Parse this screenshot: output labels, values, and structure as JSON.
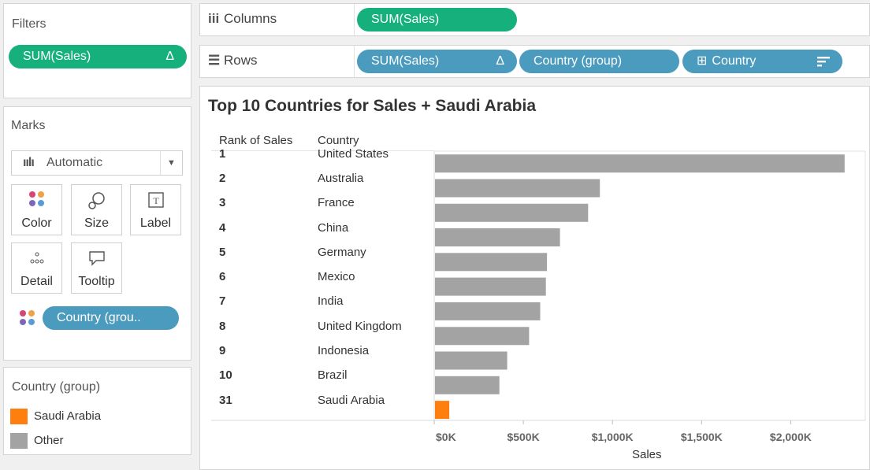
{
  "filters": {
    "title": "Filters",
    "pill": {
      "label": "SUM(Sales)",
      "icon": "Δ"
    }
  },
  "columns": {
    "label": "Columns",
    "pills": [
      {
        "label": "SUM(Sales)"
      }
    ]
  },
  "rows": {
    "label": "Rows",
    "pills": [
      {
        "label": "SUM(Sales)",
        "icon": "Δ"
      },
      {
        "label": "Country (group)"
      },
      {
        "label": "Country",
        "prefix": "⊞"
      }
    ]
  },
  "marks": {
    "title": "Marks",
    "type_value": "Automatic",
    "buttons": [
      {
        "label": "Color"
      },
      {
        "label": "Size"
      },
      {
        "label": "Label"
      },
      {
        "label": "Detail"
      },
      {
        "label": "Tooltip"
      }
    ],
    "color_pill": "Country (grou.."
  },
  "legend": {
    "title": "Country (group)",
    "items": [
      {
        "label": "Saudi Arabia",
        "color": "#ff7f0e"
      },
      {
        "label": "Other",
        "color": "#a3a3a3"
      }
    ]
  },
  "colors": {
    "green": "#16b07d",
    "teal": "#4a9bbd",
    "bar": "#a3a3a3",
    "highlight": "#ff7f0e"
  },
  "chart_data": {
    "type": "bar",
    "orientation": "horizontal",
    "title": "Top 10 Countries for Sales + Saudi Arabia",
    "column_headers": [
      "Rank of Sales",
      "Country"
    ],
    "xlabel": "Sales",
    "xlim": [
      0,
      2350000
    ],
    "ticks": [
      {
        "value": 0,
        "label": "$0K"
      },
      {
        "value": 500000,
        "label": "$500K"
      },
      {
        "value": 1000000,
        "label": "$1,000K"
      },
      {
        "value": 1500000,
        "label": "$1,500K"
      },
      {
        "value": 2000000,
        "label": "$2,000K"
      }
    ],
    "rows": [
      {
        "rank": "1",
        "country": "United States",
        "value": 2298000,
        "group": "Other"
      },
      {
        "rank": "2",
        "country": "Australia",
        "value": 925000,
        "group": "Other"
      },
      {
        "rank": "3",
        "country": "France",
        "value": 859000,
        "group": "Other"
      },
      {
        "rank": "4",
        "country": "China",
        "value": 701000,
        "group": "Other"
      },
      {
        "rank": "5",
        "country": "Germany",
        "value": 628000,
        "group": "Other"
      },
      {
        "rank": "6",
        "country": "Mexico",
        "value": 622000,
        "group": "Other"
      },
      {
        "rank": "7",
        "country": "India",
        "value": 590000,
        "group": "Other"
      },
      {
        "rank": "8",
        "country": "United Kingdom",
        "value": 528000,
        "group": "Other"
      },
      {
        "rank": "9",
        "country": "Indonesia",
        "value": 405000,
        "group": "Other"
      },
      {
        "rank": "10",
        "country": "Brazil",
        "value": 361000,
        "group": "Other"
      },
      {
        "rank": "31",
        "country": "Saudi Arabia",
        "value": 80000,
        "group": "Saudi Arabia"
      }
    ]
  }
}
